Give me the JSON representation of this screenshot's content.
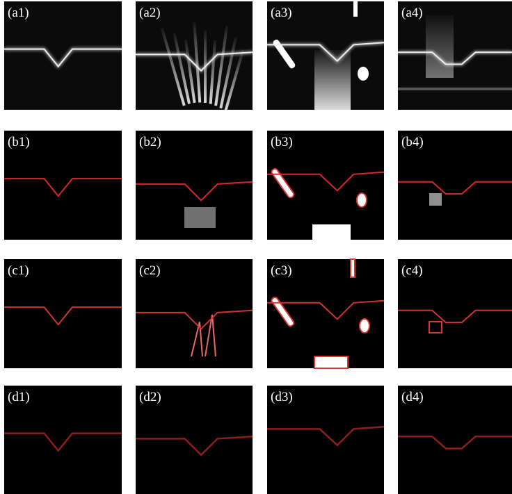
{
  "panels": [
    [
      "(a1)",
      "(a2)",
      "(a3)",
      "(a4)"
    ],
    [
      "(b1)",
      "(b2)",
      "(b3)",
      "(b4)"
    ],
    [
      "(c1)",
      "(c2)",
      "(c3)",
      "(c4)"
    ],
    [
      "(d1)",
      "(d2)",
      "(d3)",
      "(d4)"
    ]
  ]
}
